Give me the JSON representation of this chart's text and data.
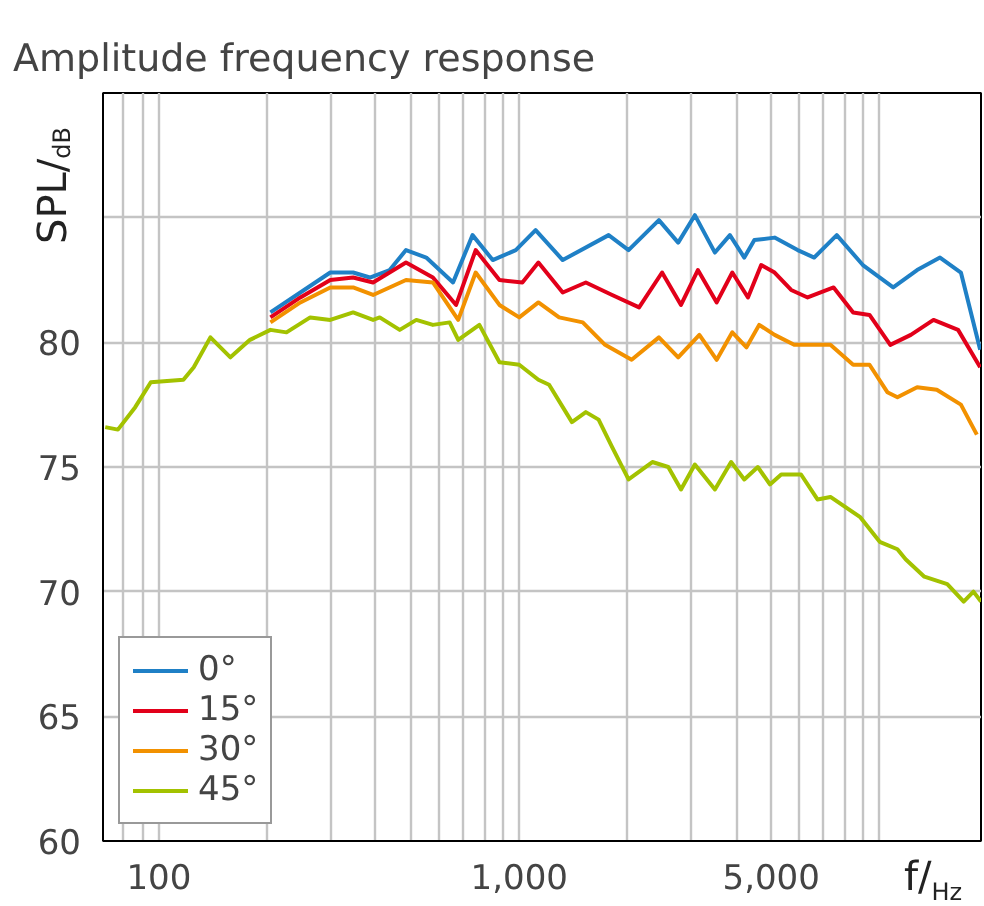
{
  "chart_data": {
    "type": "line",
    "title": "Amplitude frequency response",
    "xlabel": "f/$_{Hz}$",
    "ylabel": "SPL/$_{dB}$",
    "log": "x",
    "grid": true,
    "legend": "bottom left",
    "line_style": "solid",
    "marker": "none",
    "xlim": [
      70,
      19100
    ],
    "ylim": [
      60,
      90
    ],
    "xticks": [
      {
        "value": 80,
        "label": null
      },
      {
        "value": 90,
        "label": null
      },
      100,
      {
        "value": 200,
        "label": null
      },
      {
        "value": 300,
        "label": null
      },
      {
        "value": 400,
        "label": null
      },
      {
        "value": 500,
        "label": null
      },
      {
        "value": 600,
        "label": null
      },
      {
        "value": 700,
        "label": null
      },
      {
        "value": 800,
        "label": null
      },
      {
        "value": 900,
        "label": null
      },
      {
        "value": 1000,
        "label": "1,000"
      },
      {
        "value": 2000,
        "label": null
      },
      {
        "value": 3000,
        "label": null
      },
      {
        "value": 4000,
        "label": null
      },
      {
        "value": 5000,
        "label": "5,000"
      },
      {
        "value": 6000,
        "label": null
      },
      {
        "value": 7000,
        "label": null
      },
      {
        "value": 8000,
        "label": null
      },
      {
        "value": 9000,
        "label": null
      },
      {
        "value": 10000,
        "label": null
      }
    ],
    "yticks": [
      60,
      65,
      70,
      75,
      80,
      {
        "value": 85,
        "label": null
      }
    ],
    "series": [
      {
        "name": "0°",
        "color": "#1f80c6",
        "x": [
          204,
          247,
          299,
          346,
          385,
          437,
          485,
          552,
          655,
          742,
          844,
          978,
          1110,
          1320,
          1770,
          2010,
          2440,
          2760,
          3070,
          3490,
          3840,
          4210,
          4490,
          5110,
          5920,
          6580,
          7600,
          8980,
          10900,
          12700,
          14700,
          16800,
          19000
        ],
        "values": [
          81.2,
          82.0,
          82.8,
          82.8,
          82.6,
          82.9,
          83.7,
          83.4,
          82.4,
          84.3,
          83.3,
          83.7,
          84.5,
          83.3,
          84.3,
          83.7,
          84.9,
          84.0,
          85.1,
          83.6,
          84.3,
          83.4,
          84.1,
          84.2,
          83.7,
          83.4,
          84.3,
          83.1,
          82.2,
          82.9,
          83.4,
          82.8,
          79.7
        ]
      },
      {
        "name": "15°",
        "color": "#e2001a",
        "x": [
          204,
          247,
          299,
          346,
          393,
          485,
          576,
          668,
          757,
          881,
          1020,
          1130,
          1320,
          1530,
          1810,
          2150,
          2490,
          2810,
          3130,
          3530,
          3900,
          4310,
          4690,
          5110,
          5680,
          6310,
          7450,
          8440,
          9370,
          10700,
          12200,
          14100,
          16500,
          19000
        ],
        "values": [
          81.0,
          81.8,
          82.5,
          82.6,
          82.4,
          83.2,
          82.6,
          81.5,
          83.7,
          82.5,
          82.4,
          83.2,
          82.0,
          82.4,
          81.9,
          81.4,
          82.8,
          81.5,
          82.9,
          81.6,
          82.8,
          81.8,
          83.1,
          82.8,
          82.1,
          81.8,
          82.2,
          81.2,
          81.1,
          79.9,
          80.3,
          80.9,
          80.5,
          79.0
        ]
      },
      {
        "name": "30°",
        "color": "#f29100",
        "x": [
          204,
          247,
          299,
          346,
          393,
          485,
          576,
          677,
          757,
          881,
          1000,
          1130,
          1290,
          1500,
          1730,
          2050,
          2440,
          2760,
          3160,
          3530,
          3900,
          4270,
          4630,
          5110,
          5790,
          7300,
          8440,
          9370,
          10500,
          11200,
          12700,
          14400,
          16800,
          18600
        ],
        "values": [
          80.8,
          81.6,
          82.2,
          82.2,
          81.9,
          82.5,
          82.4,
          80.9,
          82.8,
          81.5,
          81.0,
          81.6,
          81.0,
          80.8,
          79.9,
          79.3,
          80.2,
          79.4,
          80.3,
          79.3,
          80.4,
          79.8,
          80.7,
          80.3,
          79.9,
          79.9,
          79.1,
          79.1,
          78.0,
          77.8,
          78.2,
          78.1,
          77.5,
          76.3
        ]
      },
      {
        "name": "45°",
        "color": "#a3c200",
        "x": [
          71,
          77,
          86,
          95,
          117,
          125,
          139,
          158,
          179,
          204,
          226,
          263,
          299,
          346,
          393,
          410,
          466,
          518,
          576,
          641,
          677,
          775,
          881,
          1000,
          1130,
          1210,
          1400,
          1530,
          1660,
          1810,
          2010,
          2340,
          2590,
          2810,
          3070,
          3490,
          3870,
          4210,
          4590,
          4960,
          5330,
          6050,
          6720,
          7300,
          8810,
          10000,
          11200,
          11800,
          13300,
          15400,
          17100,
          18200,
          19100
        ],
        "values": [
          76.6,
          76.5,
          77.4,
          78.4,
          78.5,
          79.0,
          80.2,
          79.4,
          80.1,
          80.5,
          80.4,
          81.0,
          80.9,
          81.2,
          80.9,
          81.0,
          80.5,
          80.9,
          80.7,
          80.8,
          80.1,
          80.7,
          79.2,
          79.1,
          78.5,
          78.3,
          76.8,
          77.2,
          76.9,
          75.8,
          74.5,
          75.2,
          75.0,
          74.1,
          75.1,
          74.1,
          75.2,
          74.5,
          75.0,
          74.3,
          74.7,
          74.7,
          73.7,
          73.8,
          73.0,
          72.0,
          71.7,
          71.3,
          70.6,
          70.3,
          69.6,
          70.0,
          69.6
        ]
      }
    ]
  }
}
